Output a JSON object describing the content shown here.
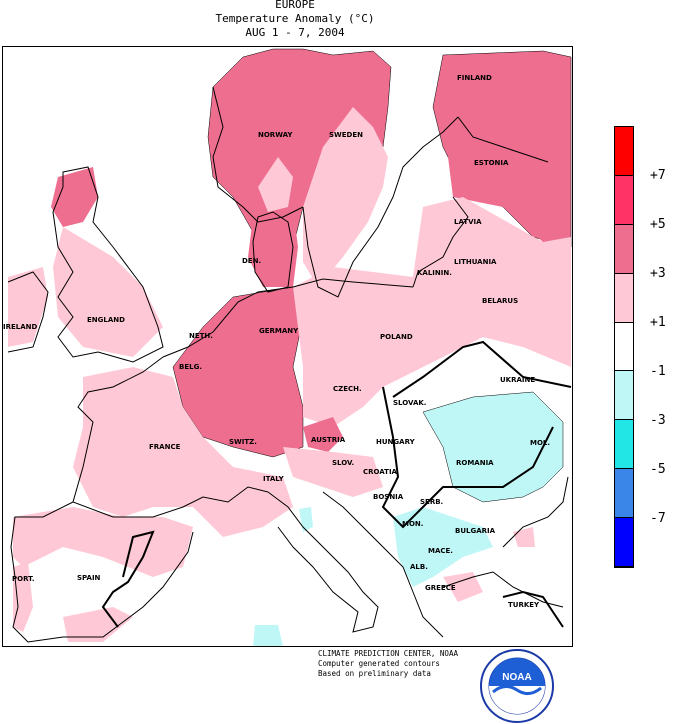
{
  "header": {
    "region": "EUROPE",
    "product": "Temperature Anomaly (°C)",
    "period": "AUG 1 - 7, 2004"
  },
  "legend": {
    "bins": [
      {
        "range": "above +7",
        "color": "#ff0000"
      },
      {
        "range": "+5 to +7",
        "color": "#ff3366"
      },
      {
        "range": "+3 to +5",
        "color": "#ee6e8f"
      },
      {
        "range": "+1 to +3",
        "color": "#ffc8d6"
      },
      {
        "range": "-1 to +1",
        "color": "#ffffff"
      },
      {
        "range": "-3 to -1",
        "color": "#bff7f7"
      },
      {
        "range": "-5 to -3",
        "color": "#22e6e6"
      },
      {
        "range": "-7 to -5",
        "color": "#3a86e8"
      },
      {
        "range": "below -7",
        "color": "#0000ff"
      }
    ],
    "ticks": [
      "+7",
      "+5",
      "+3",
      "+1",
      "-1",
      "-3",
      "-5",
      "-7"
    ]
  },
  "countries": {
    "finland": "FINLAND",
    "norway": "NORWAY",
    "sweden": "SWEDEN",
    "estonia": "ESTONIA",
    "latvia": "LATVIA",
    "den": "DEN.",
    "kaliningrad": "KALININ.",
    "lithuania": "LITHUANIA",
    "belarus": "BELARUS",
    "england": "ENGLAND",
    "ireland": "IRELAND",
    "neth": "NETH.",
    "germany": "GERMANY",
    "poland": "POLAND",
    "belg": "BELG.",
    "czech": "CZECH.",
    "ukraine": "UKRAINE",
    "slovak": "SLOVAK.",
    "france": "FRANCE",
    "switz": "SWITZ.",
    "austria": "AUSTRIA",
    "hungary": "HUNGARY",
    "romania": "ROMANIA",
    "mol": "MOL.",
    "slov": "SLOV.",
    "croatia": "CROATIA",
    "italy": "ITALY",
    "bosnia": "BOSNIA",
    "serb": "SERB.",
    "mon": "MON.",
    "bulgaria": "BULGARIA",
    "mace": "MACE.",
    "alb": "ALB.",
    "greece": "GREECE",
    "port": "PORT.",
    "spain": "SPAIN",
    "turkey": "TURKEY"
  },
  "credit": {
    "line1": "CLIMATE PREDICTION CENTER, NOAA",
    "line2": "Computer generated contours",
    "line3": "Based on preliminary data",
    "logo_text": "NOAA"
  }
}
